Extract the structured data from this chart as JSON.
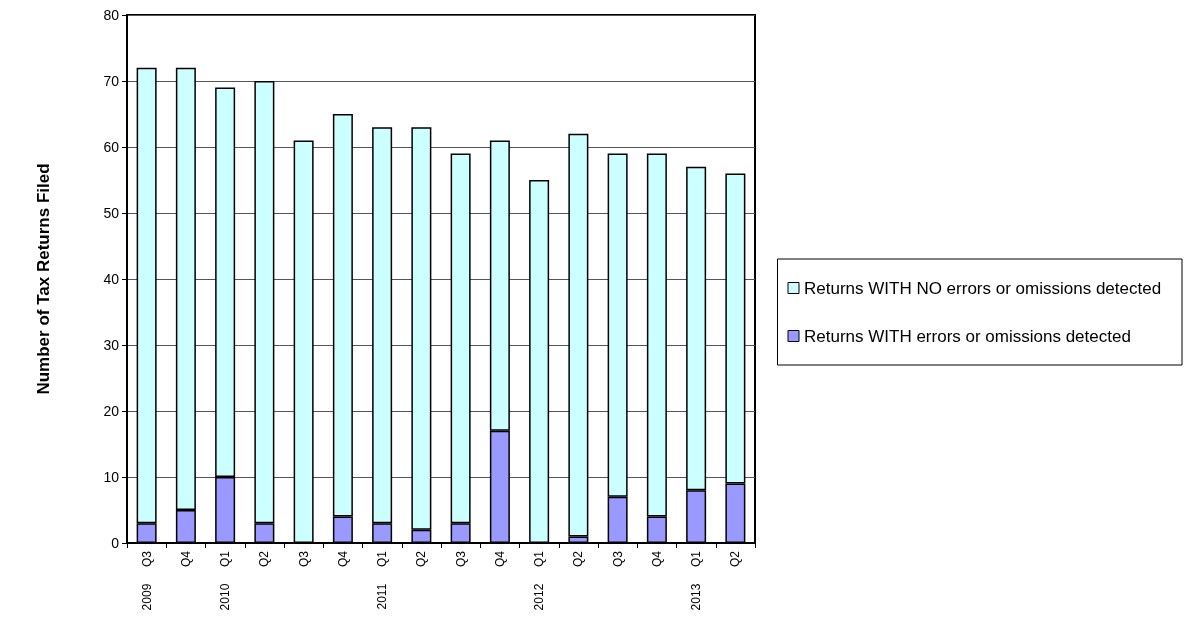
{
  "chart_data": {
    "type": "bar",
    "stacked": true,
    "ylabel": "Number of Tax Returns Filed",
    "categories": [
      "2009  Q3",
      "Q4",
      "2010  Q1",
      "Q2",
      "Q3",
      "Q4",
      "2011  Q1",
      "Q2",
      "Q3",
      "Q4",
      "2012  Q1",
      "Q2",
      "Q3",
      "Q4",
      "2013  Q1",
      "Q2"
    ],
    "series": [
      {
        "name": "Returns WITH errors or omissions detected",
        "color": "#9999ff",
        "values": [
          3,
          5,
          10,
          3,
          0,
          4,
          3,
          2,
          3,
          17,
          0,
          1,
          7,
          4,
          8,
          9
        ]
      },
      {
        "name": "Returns WITH NO errors or omissions detected",
        "color": "#ccffff",
        "values": [
          69,
          67,
          59,
          67,
          61,
          61,
          60,
          61,
          56,
          44,
          55,
          61,
          52,
          55,
          49,
          47
        ]
      }
    ],
    "ylim": [
      0,
      80
    ],
    "yticks": [
      0,
      10,
      20,
      30,
      40,
      50,
      60,
      70,
      80
    ],
    "grid": "y",
    "legend": "right"
  }
}
